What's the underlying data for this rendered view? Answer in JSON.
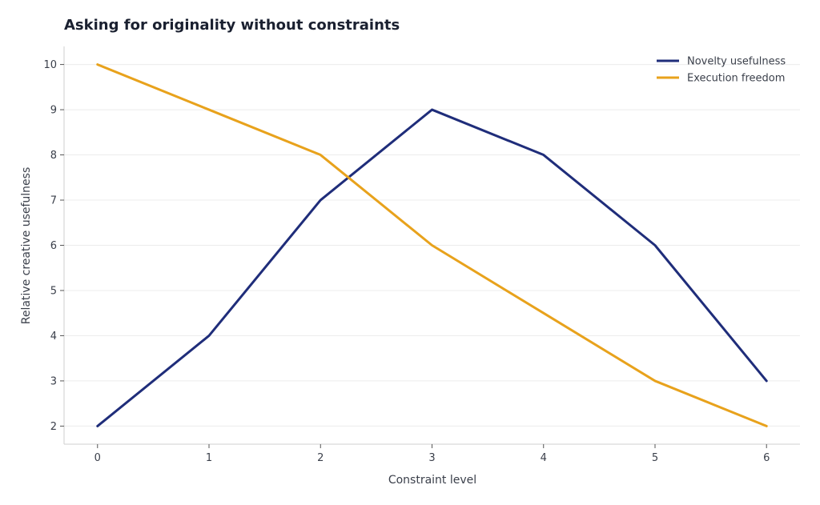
{
  "chart_data": {
    "type": "line",
    "title": "Asking for originality without constraints",
    "xlabel": "Constraint level",
    "ylabel": "Relative creative usefulness",
    "x": [
      0,
      1,
      2,
      3,
      4,
      5,
      6
    ],
    "xticks": [
      "0",
      "1",
      "2",
      "3",
      "4",
      "5",
      "6"
    ],
    "yticks": [
      "2",
      "3",
      "4",
      "5",
      "6",
      "7",
      "8",
      "9",
      "10"
    ],
    "xlim": [
      -0.3,
      6.3
    ],
    "ylim": [
      1.6,
      10.4
    ],
    "grid": "horizontal",
    "legend_position": "top-right",
    "series": [
      {
        "name": "Novelty usefulness",
        "color": "#1f2d7a",
        "values": [
          2,
          4,
          7,
          9,
          8,
          6,
          3
        ]
      },
      {
        "name": "Execution freedom",
        "color": "#e8a21c",
        "values": [
          10,
          9,
          8,
          6,
          4.5,
          3,
          2
        ]
      }
    ]
  }
}
